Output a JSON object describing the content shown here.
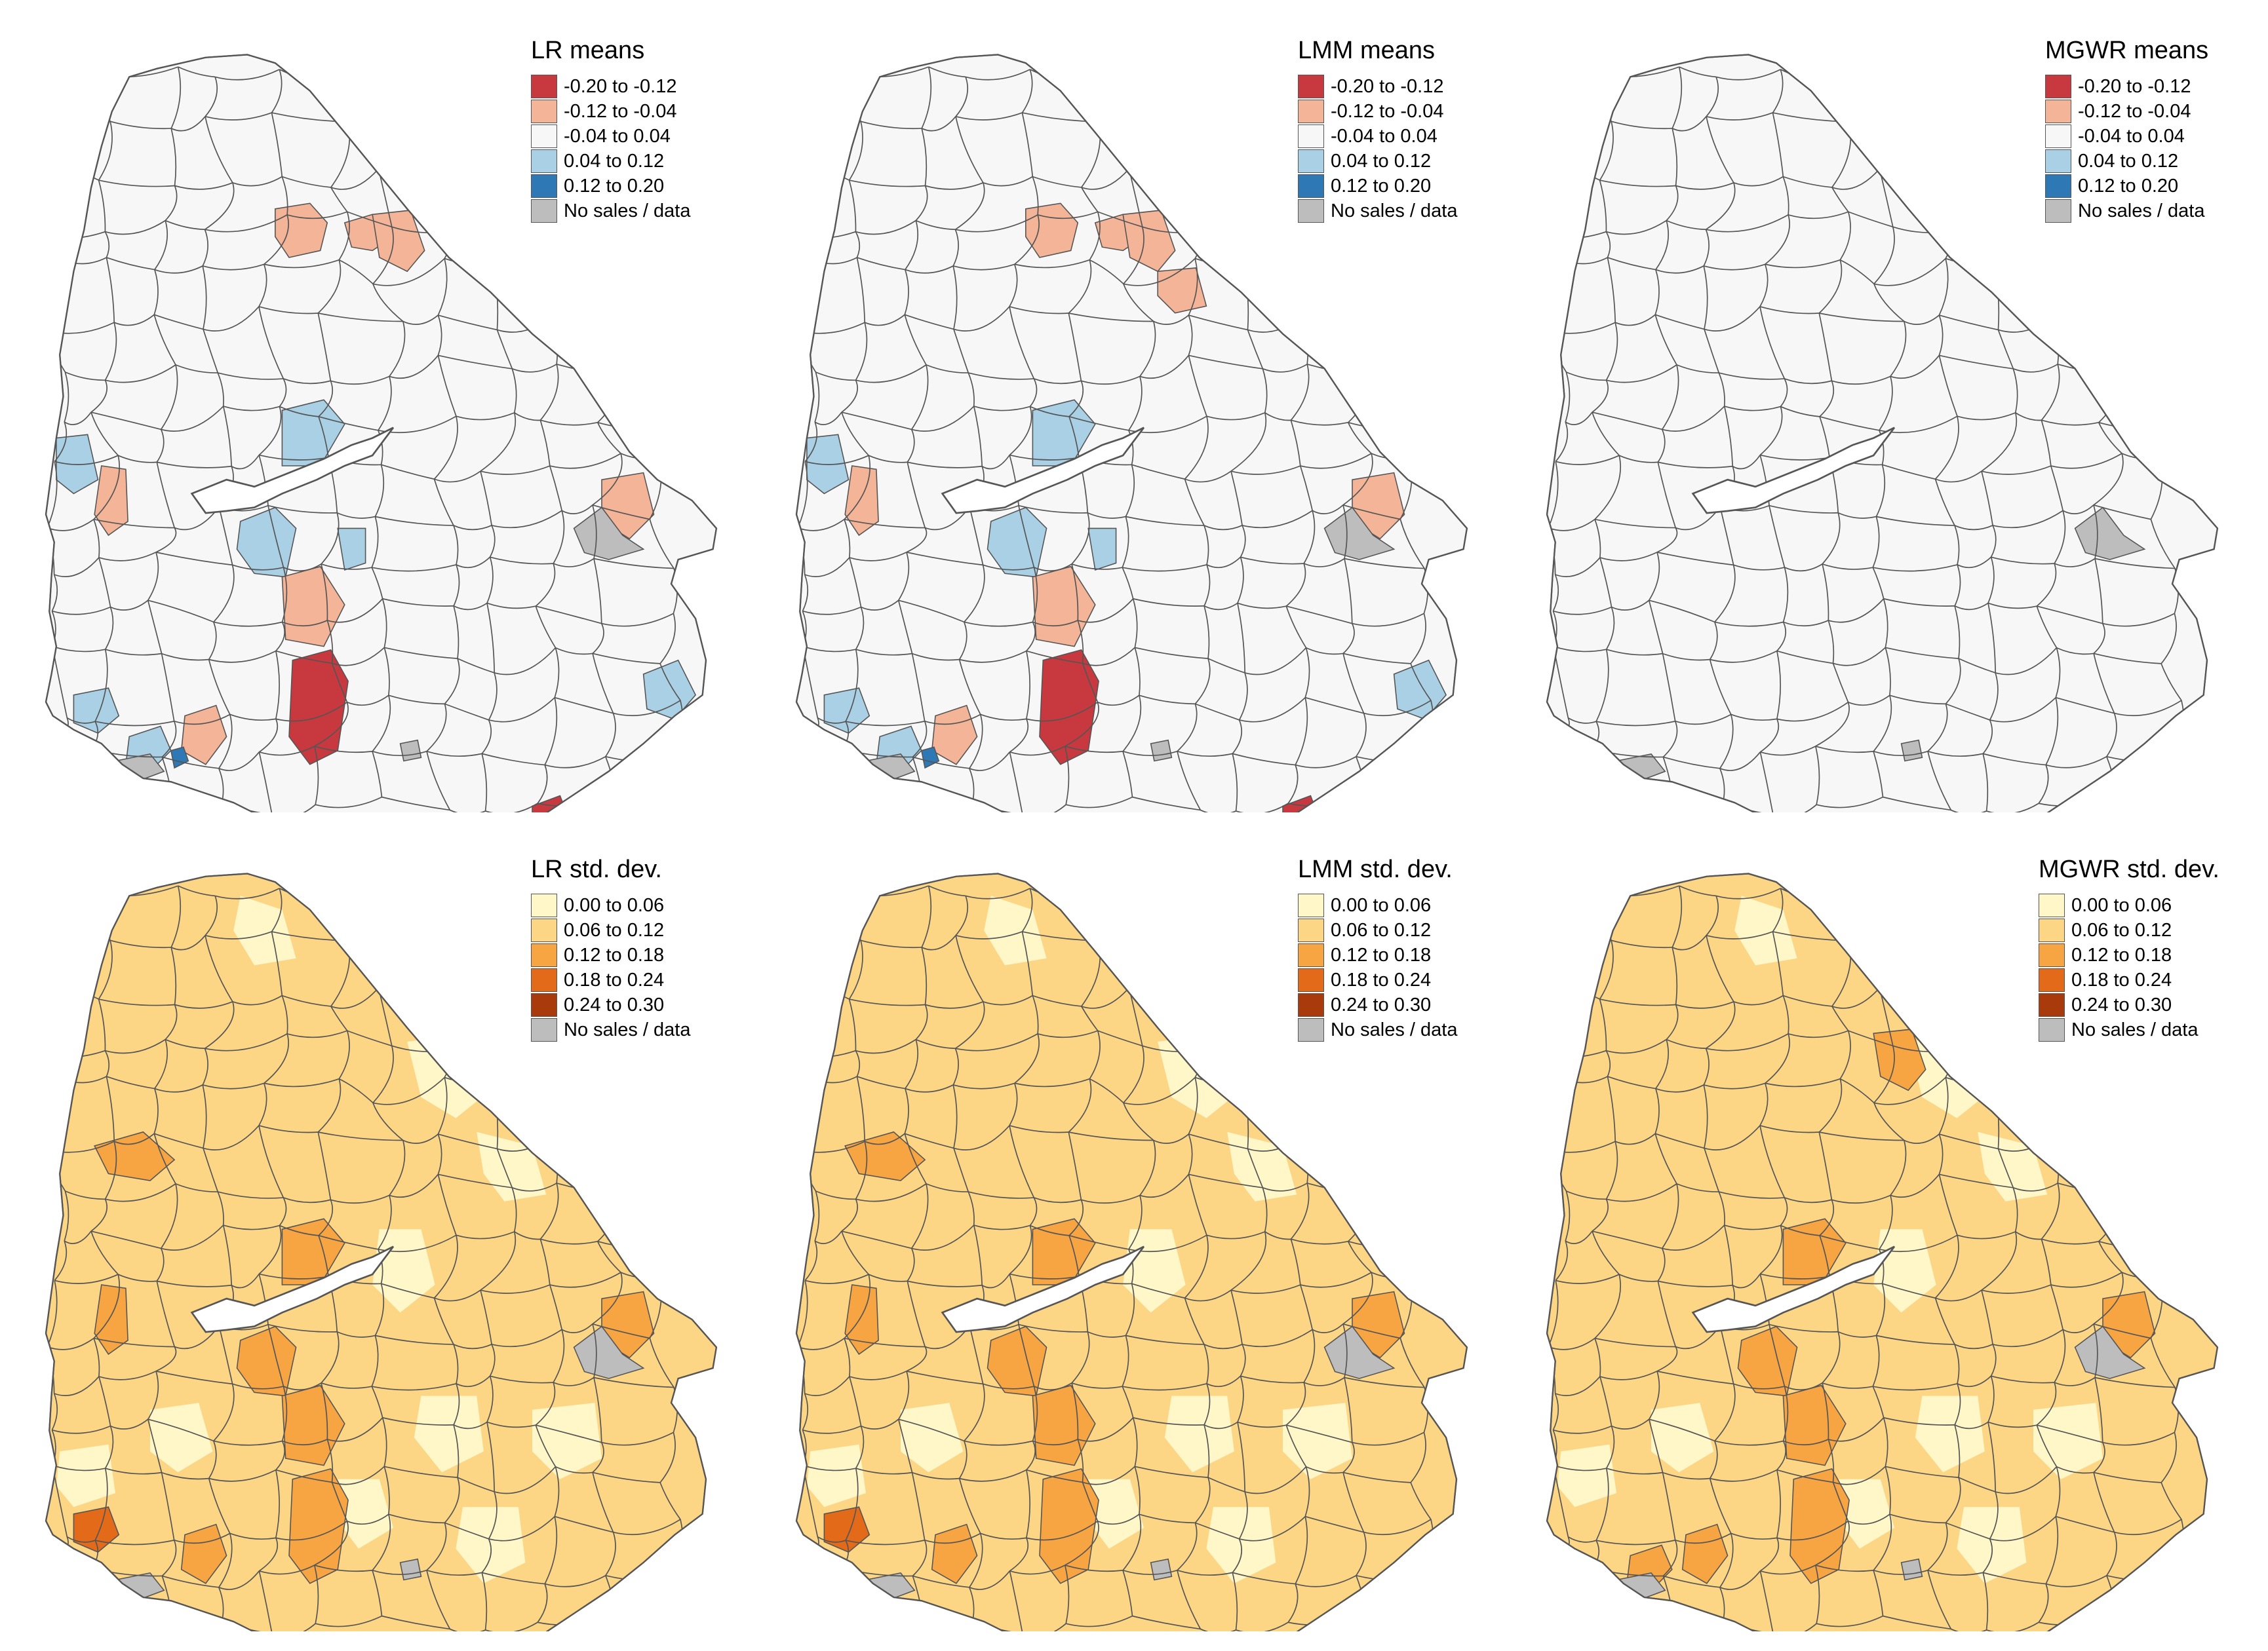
{
  "panels": [
    {
      "id": "lr-means",
      "title": "LR means",
      "scale": "means",
      "highlights": [
        {
          "zone": "north-center",
          "class": 1
        },
        {
          "zone": "north-east-top",
          "class": 1
        },
        {
          "zone": "north-east",
          "class": 1
        },
        {
          "zone": "west-upper",
          "class": 3
        },
        {
          "zone": "center-north",
          "class": 3
        },
        {
          "zone": "west-mid",
          "class": 1
        },
        {
          "zone": "center-south-a",
          "class": 3
        },
        {
          "zone": "center-south-b",
          "class": 1
        },
        {
          "zone": "center-south-c",
          "class": 3
        },
        {
          "zone": "east-center",
          "class": 1
        },
        {
          "zone": "south-center",
          "class": 0
        },
        {
          "zone": "south-west-a",
          "class": 1
        },
        {
          "zone": "south-west-b",
          "class": 3
        },
        {
          "zone": "south-dot",
          "class": 4
        },
        {
          "zone": "south-east",
          "class": 0
        },
        {
          "zone": "south-east-b",
          "class": 3
        },
        {
          "zone": "south-coast",
          "class": 3
        }
      ]
    },
    {
      "id": "lmm-means",
      "title": "LMM means",
      "scale": "means",
      "highlights": [
        {
          "zone": "north-center",
          "class": 1
        },
        {
          "zone": "north-east-top",
          "class": 1
        },
        {
          "zone": "north-east",
          "class": 1
        },
        {
          "zone": "north-east-2",
          "class": 1
        },
        {
          "zone": "east-far",
          "class": 1
        },
        {
          "zone": "west-upper",
          "class": 3
        },
        {
          "zone": "center-north",
          "class": 3
        },
        {
          "zone": "west-mid",
          "class": 1
        },
        {
          "zone": "center-south-a",
          "class": 3
        },
        {
          "zone": "center-south-b",
          "class": 1
        },
        {
          "zone": "center-south-c",
          "class": 3
        },
        {
          "zone": "east-center",
          "class": 1
        },
        {
          "zone": "south-center",
          "class": 0
        },
        {
          "zone": "south-west-a",
          "class": 1
        },
        {
          "zone": "south-west-b",
          "class": 3
        },
        {
          "zone": "south-dot",
          "class": 4
        },
        {
          "zone": "south-east",
          "class": 0
        },
        {
          "zone": "south-east-b",
          "class": 3
        },
        {
          "zone": "south-coast",
          "class": 3
        }
      ]
    },
    {
      "id": "mgwr-means",
      "title": "MGWR means",
      "scale": "means",
      "highlights": []
    },
    {
      "id": "lr-sd",
      "title": "LR std. dev.",
      "scale": "sd",
      "highlights": [
        {
          "zone": "north-west",
          "class": 2
        },
        {
          "zone": "center-north",
          "class": 2
        },
        {
          "zone": "east-center",
          "class": 2
        },
        {
          "zone": "east-dark",
          "class": 4
        },
        {
          "zone": "west-mid",
          "class": 2
        },
        {
          "zone": "center-south-a",
          "class": 2
        },
        {
          "zone": "center-south-b",
          "class": 2
        },
        {
          "zone": "south-center",
          "class": 2
        },
        {
          "zone": "south-west-a",
          "class": 2
        },
        {
          "zone": "south-coast",
          "class": 3
        }
      ]
    },
    {
      "id": "lmm-sd",
      "title": "LMM std. dev.",
      "scale": "sd",
      "highlights": [
        {
          "zone": "north-west",
          "class": 2
        },
        {
          "zone": "center-north",
          "class": 2
        },
        {
          "zone": "east-center",
          "class": 2
        },
        {
          "zone": "east-dark",
          "class": 4
        },
        {
          "zone": "west-mid",
          "class": 2
        },
        {
          "zone": "center-south-a",
          "class": 2
        },
        {
          "zone": "center-south-b",
          "class": 2
        },
        {
          "zone": "south-center",
          "class": 2
        },
        {
          "zone": "south-west-a",
          "class": 2
        },
        {
          "zone": "south-coast",
          "class": 3
        }
      ]
    },
    {
      "id": "mgwr-sd",
      "title": "MGWR std. dev.",
      "scale": "sd",
      "highlights": [
        {
          "zone": "north-east",
          "class": 2
        },
        {
          "zone": "center-north",
          "class": 2
        },
        {
          "zone": "east-center",
          "class": 2
        },
        {
          "zone": "east-dark",
          "class": 4
        },
        {
          "zone": "center-south-a",
          "class": 2
        },
        {
          "zone": "center-south-b",
          "class": 2
        },
        {
          "zone": "south-center",
          "class": 2
        },
        {
          "zone": "south-west-a",
          "class": 2
        },
        {
          "zone": "south-west-b",
          "class": 2
        }
      ]
    }
  ],
  "legends": {
    "means": {
      "items": [
        "-0.20 to -0.12",
        "-0.12 to -0.04",
        "-0.04 to 0.04",
        "0.04 to 0.12",
        "0.12 to 0.20",
        "No sales / data"
      ],
      "colors": [
        "#c8383f",
        "#f4b497",
        "#f7f7f7",
        "#a9d0e5",
        "#2e79b5",
        "#bdbdbd"
      ]
    },
    "sd": {
      "items": [
        "0.00 to 0.06",
        "0.06 to 0.12",
        "0.12 to 0.18",
        "0.18 to 0.24",
        "0.24 to 0.30",
        "No sales / data"
      ],
      "colors": [
        "#fff7c8",
        "#fdd685",
        "#f7a443",
        "#e26a19",
        "#a83a0b",
        "#bdbdbd"
      ]
    }
  },
  "colors": {
    "border": "#555555",
    "no_data": "#bdbdbd",
    "water": "#ffffff"
  }
}
